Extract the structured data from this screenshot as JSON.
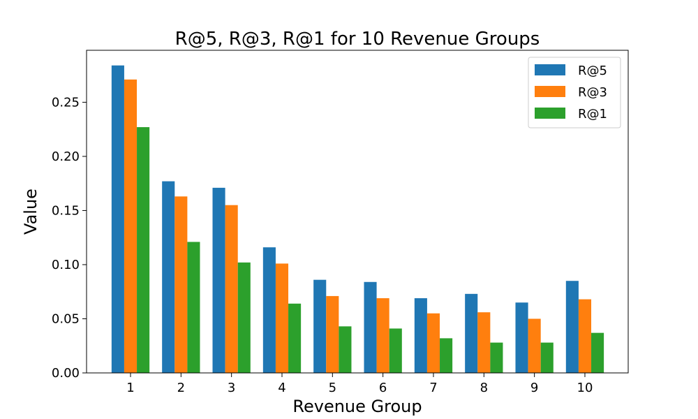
{
  "chart_data": {
    "type": "bar",
    "title": "R@5, R@3, R@1 for 10 Revenue Groups",
    "xlabel": "Revenue Group",
    "ylabel": "Value",
    "categories": [
      "1",
      "2",
      "3",
      "4",
      "5",
      "6",
      "7",
      "8",
      "9",
      "10"
    ],
    "series": [
      {
        "name": "R@5",
        "color": "#1f77b4",
        "values": [
          0.284,
          0.177,
          0.171,
          0.116,
          0.086,
          0.084,
          0.069,
          0.073,
          0.065,
          0.085
        ]
      },
      {
        "name": "R@3",
        "color": "#ff7f0e",
        "values": [
          0.271,
          0.163,
          0.155,
          0.101,
          0.071,
          0.069,
          0.055,
          0.056,
          0.05,
          0.068
        ]
      },
      {
        "name": "R@1",
        "color": "#2ca02c",
        "values": [
          0.227,
          0.121,
          0.102,
          0.064,
          0.043,
          0.041,
          0.032,
          0.028,
          0.028,
          0.037
        ]
      }
    ],
    "ylim": [
      0,
      0.298
    ],
    "yticks": [
      0.0,
      0.05,
      0.1,
      0.15,
      0.2,
      0.25
    ],
    "ytick_labels": [
      "0.00",
      "0.05",
      "0.10",
      "0.15",
      "0.20",
      "0.25"
    ],
    "grid": false,
    "legend_position": "top-right"
  }
}
